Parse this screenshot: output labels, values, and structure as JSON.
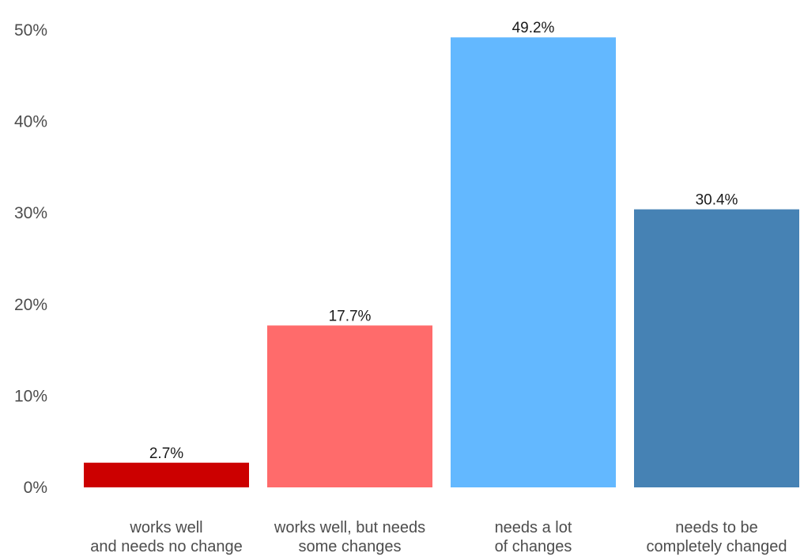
{
  "chart_data": {
    "type": "bar",
    "categories": [
      [
        "works well",
        "and needs no change"
      ],
      [
        "works well, but needs",
        "some changes"
      ],
      [
        "needs a lot",
        "of changes"
      ],
      [
        "needs to be",
        "completely changed"
      ]
    ],
    "values": [
      2.7,
      17.7,
      49.2,
      30.4
    ],
    "data_labels": [
      "2.7%",
      "17.7%",
      "49.2%",
      "30.4%"
    ],
    "colors": [
      "#cc0000",
      "#ff6b6b",
      "#63b8ff",
      "#4682b4"
    ],
    "ylim": [
      0,
      50
    ],
    "y_ticks": [
      0,
      10,
      20,
      30,
      40,
      50
    ],
    "y_tick_labels": [
      "0%",
      "10%",
      "20%",
      "30%",
      "40%",
      "50%"
    ],
    "grid": false,
    "legend": false
  }
}
